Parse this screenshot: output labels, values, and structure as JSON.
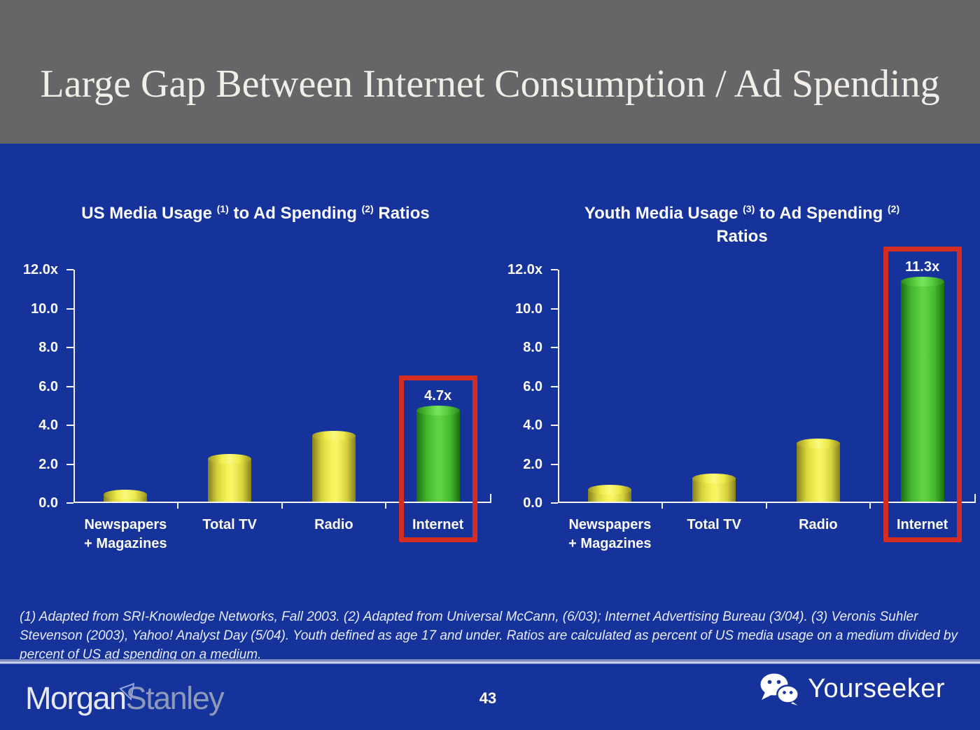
{
  "slide": {
    "title": "Large Gap Between Internet Consumption / Ad Spending",
    "page_number": "43",
    "footnote": "(1) Adapted from SRI-Knowledge Networks, Fall 2003.  (2) Adapted from Universal McCann, (6/03); Internet Advertising Bureau (3/04). (3) Veronis Suhler Stevenson (2003), Yahoo! Analyst Day (5/04).  Youth defined as age 17 and under.  Ratios are calculated as percent of US media usage on a medium divided by percent of US ad spending on a medium.",
    "brand": {
      "word1": "Morgan",
      "word2": "Stanley",
      "flag_icon": "morgan-stanley-flag"
    },
    "watermark": {
      "label": "Yourseeker",
      "icon": "wechat-bubbles"
    }
  },
  "colors": {
    "header_gray": "#666568",
    "slide_blue": "#16339c",
    "bar_yellow": "#f2ee4e",
    "bar_green": "#55c93c",
    "highlight_red": "#d52d21",
    "axis_white": "#f4f4f8",
    "title_text": "#f1eee8",
    "stanley_gray": "#8e9ab9"
  },
  "chart_data": [
    {
      "type": "bar",
      "title": "US Media Usage (1) to Ad Spending (2) Ratios",
      "title_segments": [
        {
          "t": "US Media Usage "
        },
        {
          "s": "(1)"
        },
        {
          "t": " to Ad Spending "
        },
        {
          "s": "(2)"
        },
        {
          "t": " Ratios"
        }
      ],
      "categories": [
        "Newspapers\n+ Magazines",
        "Total TV",
        "Radio",
        "Internet"
      ],
      "values": [
        0.35,
        2.2,
        3.4,
        4.7
      ],
      "bar_colors": [
        "yellow",
        "yellow",
        "yellow",
        "green"
      ],
      "highlight_index": 3,
      "highlight_label": "4.7x",
      "xlabel": "",
      "ylabel": "",
      "ylim": [
        0,
        12
      ],
      "grid": false,
      "legend": null,
      "yticks": [
        {
          "v": 12,
          "label": "12.0x"
        },
        {
          "v": 10,
          "label": "10.0"
        },
        {
          "v": 8,
          "label": "8.0"
        },
        {
          "v": 6,
          "label": "6.0"
        },
        {
          "v": 4,
          "label": "4.0"
        },
        {
          "v": 2,
          "label": "2.0"
        },
        {
          "v": 0,
          "label": "0.0"
        }
      ]
    },
    {
      "type": "bar",
      "title": "Youth Media Usage (3) to Ad Spending (2) Ratios",
      "title_segments": [
        {
          "t": "Youth Media Usage "
        },
        {
          "s": "(3)"
        },
        {
          "t": " to Ad Spending "
        },
        {
          "s": "(2)"
        },
        {
          "br": true
        },
        {
          "t": "Ratios"
        }
      ],
      "categories": [
        "Newspapers\n+ Magazines",
        "Total TV",
        "Radio",
        "Internet"
      ],
      "values": [
        0.6,
        1.2,
        3.0,
        11.3
      ],
      "bar_colors": [
        "yellow",
        "yellow",
        "yellow",
        "green"
      ],
      "highlight_index": 3,
      "highlight_label": "11.3x",
      "xlabel": "",
      "ylabel": "",
      "ylim": [
        0,
        12
      ],
      "grid": false,
      "legend": null,
      "yticks": [
        {
          "v": 12,
          "label": "12.0x"
        },
        {
          "v": 10,
          "label": "10.0"
        },
        {
          "v": 8,
          "label": "8.0"
        },
        {
          "v": 6,
          "label": "6.0"
        },
        {
          "v": 4,
          "label": "4.0"
        },
        {
          "v": 2,
          "label": "2.0"
        },
        {
          "v": 0,
          "label": "0.0"
        }
      ]
    }
  ]
}
